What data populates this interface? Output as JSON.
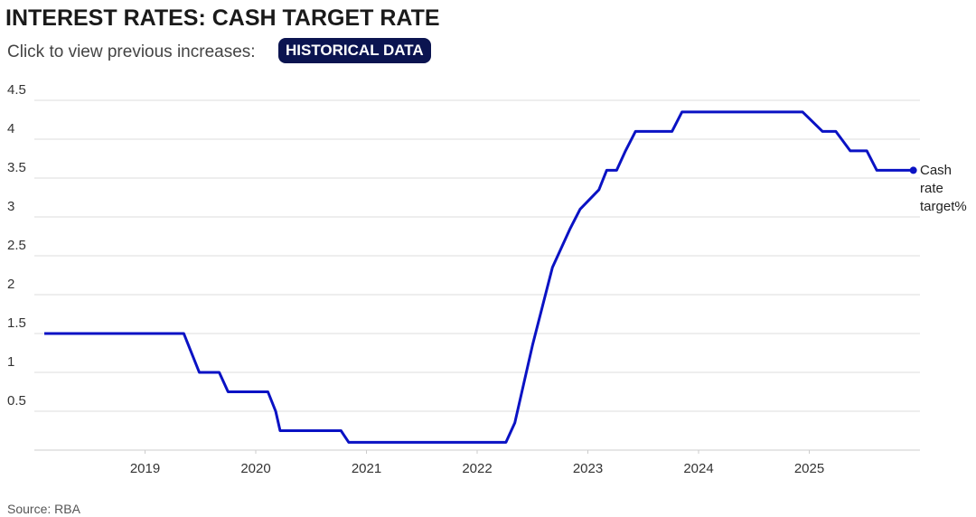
{
  "chart_data": {
    "type": "line",
    "title": "INTEREST RATES: CASH TARGET RATE",
    "subtitle": "Click to view previous increases:",
    "button": "HISTORICAL DATA",
    "source": "Source: RBA",
    "x": [
      2018.09,
      2019.35,
      2019.49,
      2019.67,
      2019.75,
      2020.11,
      2020.18,
      2020.22,
      2020.77,
      2020.84,
      2022.26,
      2022.34,
      2022.42,
      2022.5,
      2022.59,
      2022.68,
      2022.76,
      2022.84,
      2022.93,
      2023.1,
      2023.17,
      2023.26,
      2023.34,
      2023.43,
      2023.76,
      2023.85,
      2024.94,
      2025.12,
      2025.24,
      2025.37,
      2025.52,
      2025.61,
      2025.94
    ],
    "series": [
      {
        "name": "Cash rate target%",
        "color": "#0a12c4",
        "values": [
          1.5,
          1.5,
          1.0,
          1.0,
          0.75,
          0.75,
          0.5,
          0.25,
          0.25,
          0.1,
          0.1,
          0.35,
          0.85,
          1.35,
          1.85,
          2.35,
          2.6,
          2.85,
          3.1,
          3.35,
          3.6,
          3.6,
          3.85,
          4.1,
          4.1,
          4.35,
          4.35,
          4.1,
          4.1,
          3.85,
          3.85,
          3.6,
          3.6
        ]
      }
    ],
    "xlim": [
      2018,
      2026
    ],
    "xticks": [
      2019,
      2020,
      2021,
      2022,
      2023,
      2024,
      2025
    ],
    "ylim": [
      0,
      4.5
    ],
    "yticks": [
      0.5,
      1,
      1.5,
      2,
      2.5,
      3,
      3.5,
      4,
      4.5
    ],
    "grid": true
  }
}
